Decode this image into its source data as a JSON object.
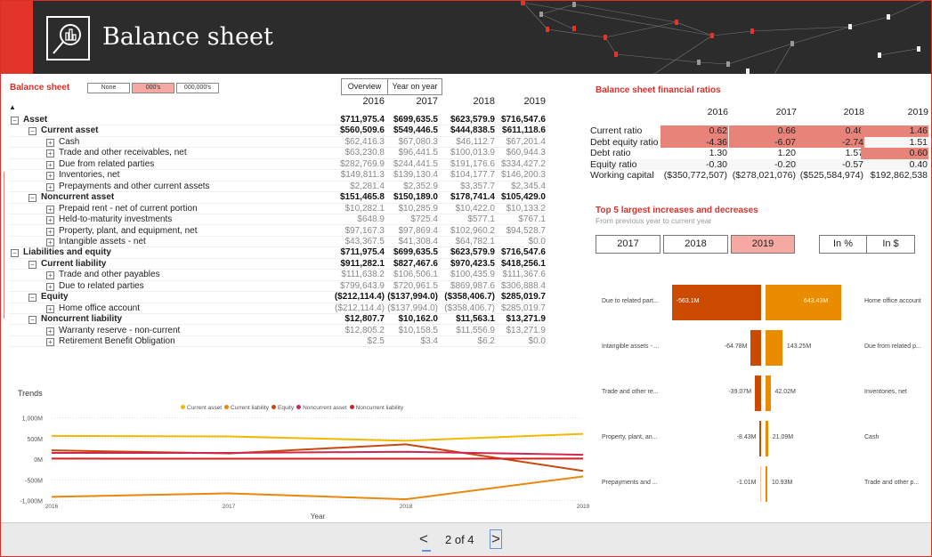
{
  "header": {
    "title": "Balance sheet"
  },
  "balance_sheet": {
    "title": "Balance sheet",
    "scale_buttons": [
      {
        "label": "None",
        "selected": false
      },
      {
        "label": "000's",
        "selected": true
      },
      {
        "label": "000,000's",
        "selected": false
      }
    ],
    "view_tabs": [
      {
        "label": "Overview"
      },
      {
        "label": "Year on year"
      }
    ],
    "years": [
      "2016",
      "2017",
      "2018",
      "2019"
    ],
    "rows": [
      {
        "label": "Asset",
        "level": 0,
        "bold": true,
        "values": [
          "$711,975.4",
          "$699,635.5",
          "$623,579.9",
          "$716,547.6"
        ]
      },
      {
        "label": "Current asset",
        "level": 1,
        "bold": true,
        "values": [
          "$560,509.6",
          "$549,446.5",
          "$444,838.5",
          "$611,118.6"
        ]
      },
      {
        "label": "Cash",
        "level": 2,
        "bold": false,
        "values": [
          "$62,416.3",
          "$67,080.3",
          "$46,112.7",
          "$67,201.4"
        ]
      },
      {
        "label": "Trade and other receivables, net",
        "level": 2,
        "bold": false,
        "values": [
          "$63,230.8",
          "$96,441.5",
          "$100,013.9",
          "$60,944.3"
        ]
      },
      {
        "label": "Due from related parties",
        "level": 2,
        "bold": false,
        "values": [
          "$282,769.9",
          "$244,441.5",
          "$191,176.6",
          "$334,427.2"
        ]
      },
      {
        "label": "Inventories, net",
        "level": 2,
        "bold": false,
        "values": [
          "$149,811.3",
          "$139,130.4",
          "$104,177.7",
          "$146,200.3"
        ]
      },
      {
        "label": "Prepayments and other current assets",
        "level": 2,
        "bold": false,
        "values": [
          "$2,281.4",
          "$2,352.9",
          "$3,357.7",
          "$2,345.4"
        ]
      },
      {
        "label": "Noncurrent asset",
        "level": 1,
        "bold": true,
        "values": [
          "$151,465.8",
          "$150,189.0",
          "$178,741.4",
          "$105,429.0"
        ]
      },
      {
        "label": "Prepaid rent - net of current portion",
        "level": 2,
        "bold": false,
        "values": [
          "$10,282.1",
          "$10,285.9",
          "$10,422.0",
          "$10,133.2"
        ]
      },
      {
        "label": "Held-to-maturity investments",
        "level": 2,
        "bold": false,
        "values": [
          "$648.9",
          "$725.4",
          "$577.1",
          "$767.1"
        ]
      },
      {
        "label": "Property, plant, and equipment, net",
        "level": 2,
        "bold": false,
        "values": [
          "$97,167.3",
          "$97,869.4",
          "$102,960.2",
          "$94,528.7"
        ]
      },
      {
        "label": "Intangible assets - net",
        "level": 2,
        "bold": false,
        "values": [
          "$43,367.5",
          "$41,308.4",
          "$64,782.1",
          "$0.0"
        ]
      },
      {
        "label": "Liabilities and equity",
        "level": 0,
        "bold": true,
        "values": [
          "$711,975.4",
          "$699,635.5",
          "$623,579.9",
          "$716,547.6"
        ]
      },
      {
        "label": "Current liability",
        "level": 1,
        "bold": true,
        "values": [
          "$911,282.1",
          "$827,467.6",
          "$970,423.5",
          "$418,256.1"
        ]
      },
      {
        "label": "Trade and other payables",
        "level": 2,
        "bold": false,
        "values": [
          "$111,638.2",
          "$106,506.1",
          "$100,435.9",
          "$111,367.6"
        ]
      },
      {
        "label": "Due to related parties",
        "level": 2,
        "bold": false,
        "values": [
          "$799,643.9",
          "$720,961.5",
          "$869,987.6",
          "$306,888.4"
        ]
      },
      {
        "label": "Equity",
        "level": 1,
        "bold": true,
        "values": [
          "($212,114.4)",
          "($137,994.0)",
          "($358,406.7)",
          "$285,019.7"
        ]
      },
      {
        "label": "Home office account",
        "level": 2,
        "bold": false,
        "values": [
          "($212,114.4)",
          "($137,994.0)",
          "($358,406.7)",
          "$285,019.7"
        ]
      },
      {
        "label": "Noncurrent liability",
        "level": 1,
        "bold": true,
        "values": [
          "$12,807.7",
          "$10,162.0",
          "$11,563.1",
          "$13,271.9"
        ]
      },
      {
        "label": "Warranty reserve - non-current",
        "level": 2,
        "bold": false,
        "values": [
          "$12,805.2",
          "$10,158.5",
          "$11,556.9",
          "$13,271.9"
        ]
      },
      {
        "label": "Retirement Benefit Obligation",
        "level": 2,
        "bold": false,
        "values": [
          "$2.5",
          "$3.4",
          "$6.2",
          "$0.0"
        ]
      }
    ]
  },
  "ratios": {
    "title": "Balance sheet financial ratios",
    "years": [
      "2016",
      "2017",
      "2018",
      "2019"
    ],
    "rows": [
      {
        "label": "Current ratio",
        "values": [
          "0.62",
          "0.66",
          "0.46",
          "1.46"
        ],
        "highlight": [
          true,
          true,
          true,
          true
        ]
      },
      {
        "label": "Debt equity ratio",
        "values": [
          "-4.36",
          "-6.07",
          "-2.74",
          "1.51"
        ],
        "highlight": [
          true,
          true,
          true,
          false
        ]
      },
      {
        "label": "Debt ratio",
        "values": [
          "1.30",
          "1.20",
          "1.57",
          "0.60"
        ],
        "highlight": [
          false,
          false,
          false,
          true
        ]
      },
      {
        "label": "Equity ratio",
        "values": [
          "-0.30",
          "-0.20",
          "-0.57",
          "0.40"
        ],
        "highlight": [
          false,
          false,
          false,
          false
        ]
      },
      {
        "label": "Working capital",
        "values": [
          "($350,772,507)",
          "($278,021,076)",
          "($525,584,974)",
          "$192,862,538"
        ],
        "highlight": [
          false,
          false,
          false,
          false
        ]
      }
    ],
    "highlight_color": "#e8837a"
  },
  "top5": {
    "title": "Top 5 largest increases and decreases",
    "subtitle": "From previous year to current year",
    "year_buttons": [
      {
        "label": "2017",
        "selected": false
      },
      {
        "label": "2018",
        "selected": false
      },
      {
        "label": "2019",
        "selected": true
      }
    ],
    "mode_buttons": [
      {
        "label": "In %"
      },
      {
        "label": "In $"
      }
    ],
    "decreases": [
      {
        "label": "Due to related part...",
        "value": -563.1,
        "text": "-563.1M"
      },
      {
        "label": "Intangible assets - ...",
        "value": -64.78,
        "text": "-64.78M"
      },
      {
        "label": "Trade and other re...",
        "value": -39.07,
        "text": "-39.07M"
      },
      {
        "label": "Property, plant, an...",
        "value": -8.43,
        "text": "-8.43M"
      },
      {
        "label": "Prepayments and ...",
        "value": -1.01,
        "text": "-1.01M"
      }
    ],
    "increases": [
      {
        "label": "Home office account",
        "value": 643.43,
        "text": "643.43M"
      },
      {
        "label": "Due from related p...",
        "value": 143.25,
        "text": "143.25M"
      },
      {
        "label": "Inventories, net",
        "value": 42.02,
        "text": "42.02M"
      },
      {
        "label": "Cash",
        "value": 21.09,
        "text": "21.09M"
      },
      {
        "label": "Trade and other p...",
        "value": 10.93,
        "text": "10.93M"
      }
    ],
    "colors": {
      "decrease": "#cc4a00",
      "increase": "#ea8c00"
    }
  },
  "chart_data": {
    "type": "line",
    "title": "Trends",
    "xlabel": "Year",
    "ylabel": "",
    "x": [
      "2016",
      "2017",
      "2018",
      "2019"
    ],
    "ylim": [
      -1000,
      1000
    ],
    "yticks": [
      "1,000M",
      "500M",
      "0M",
      "-500M",
      "-1,000M"
    ],
    "ytick_values": [
      1000,
      500,
      0,
      -500,
      -1000
    ],
    "legend_position": "top-center",
    "series": [
      {
        "name": "Current asset",
        "color": "#f2b800",
        "values": [
          560.5,
          549.4,
          444.8,
          611.1
        ]
      },
      {
        "name": "Current liability",
        "color": "#e8880c",
        "values": [
          -911.3,
          -827.5,
          -970.4,
          -418.3
        ]
      },
      {
        "name": "Equity",
        "color": "#c8470f",
        "values": [
          212.1,
          138.0,
          358.4,
          -285.0
        ]
      },
      {
        "name": "Noncurrent asset",
        "color": "#d0274f",
        "values": [
          151.5,
          150.2,
          178.7,
          105.4
        ]
      },
      {
        "name": "Noncurrent liability",
        "color": "#d42020",
        "values": [
          12.8,
          10.2,
          11.6,
          13.3
        ]
      }
    ]
  },
  "footer": {
    "page": "2 of 4"
  }
}
